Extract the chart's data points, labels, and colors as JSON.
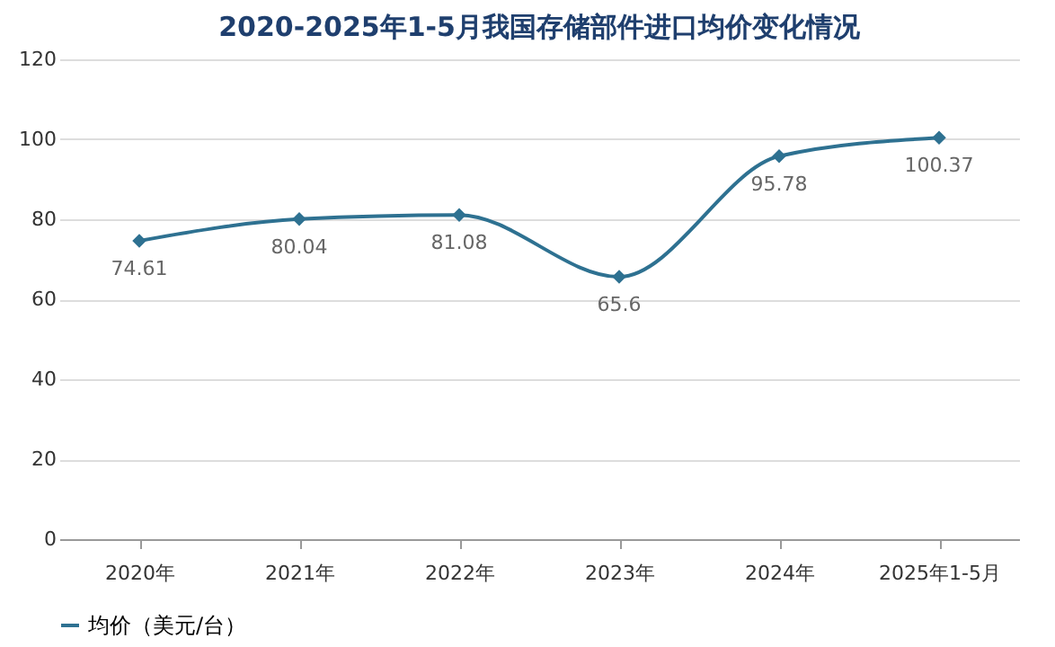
{
  "chart_data": {
    "type": "line",
    "title": "2020-2025年1-5月我国存储部件进口均价变化情况",
    "categories": [
      "2020年",
      "2021年",
      "2022年",
      "2023年",
      "2024年",
      "2025年1-5月"
    ],
    "series": [
      {
        "name": "均价（美元/台）",
        "color": "#2e7191",
        "values": [
          74.61,
          80.04,
          81.08,
          65.6,
          95.78,
          100.37
        ]
      }
    ],
    "ylim": [
      0,
      120
    ],
    "yticks": [
      0,
      20,
      40,
      60,
      80,
      100,
      120
    ],
    "grid": "y",
    "legend": "bottom",
    "marker": "diamond",
    "line_style": "solid",
    "data_labels": true
  }
}
